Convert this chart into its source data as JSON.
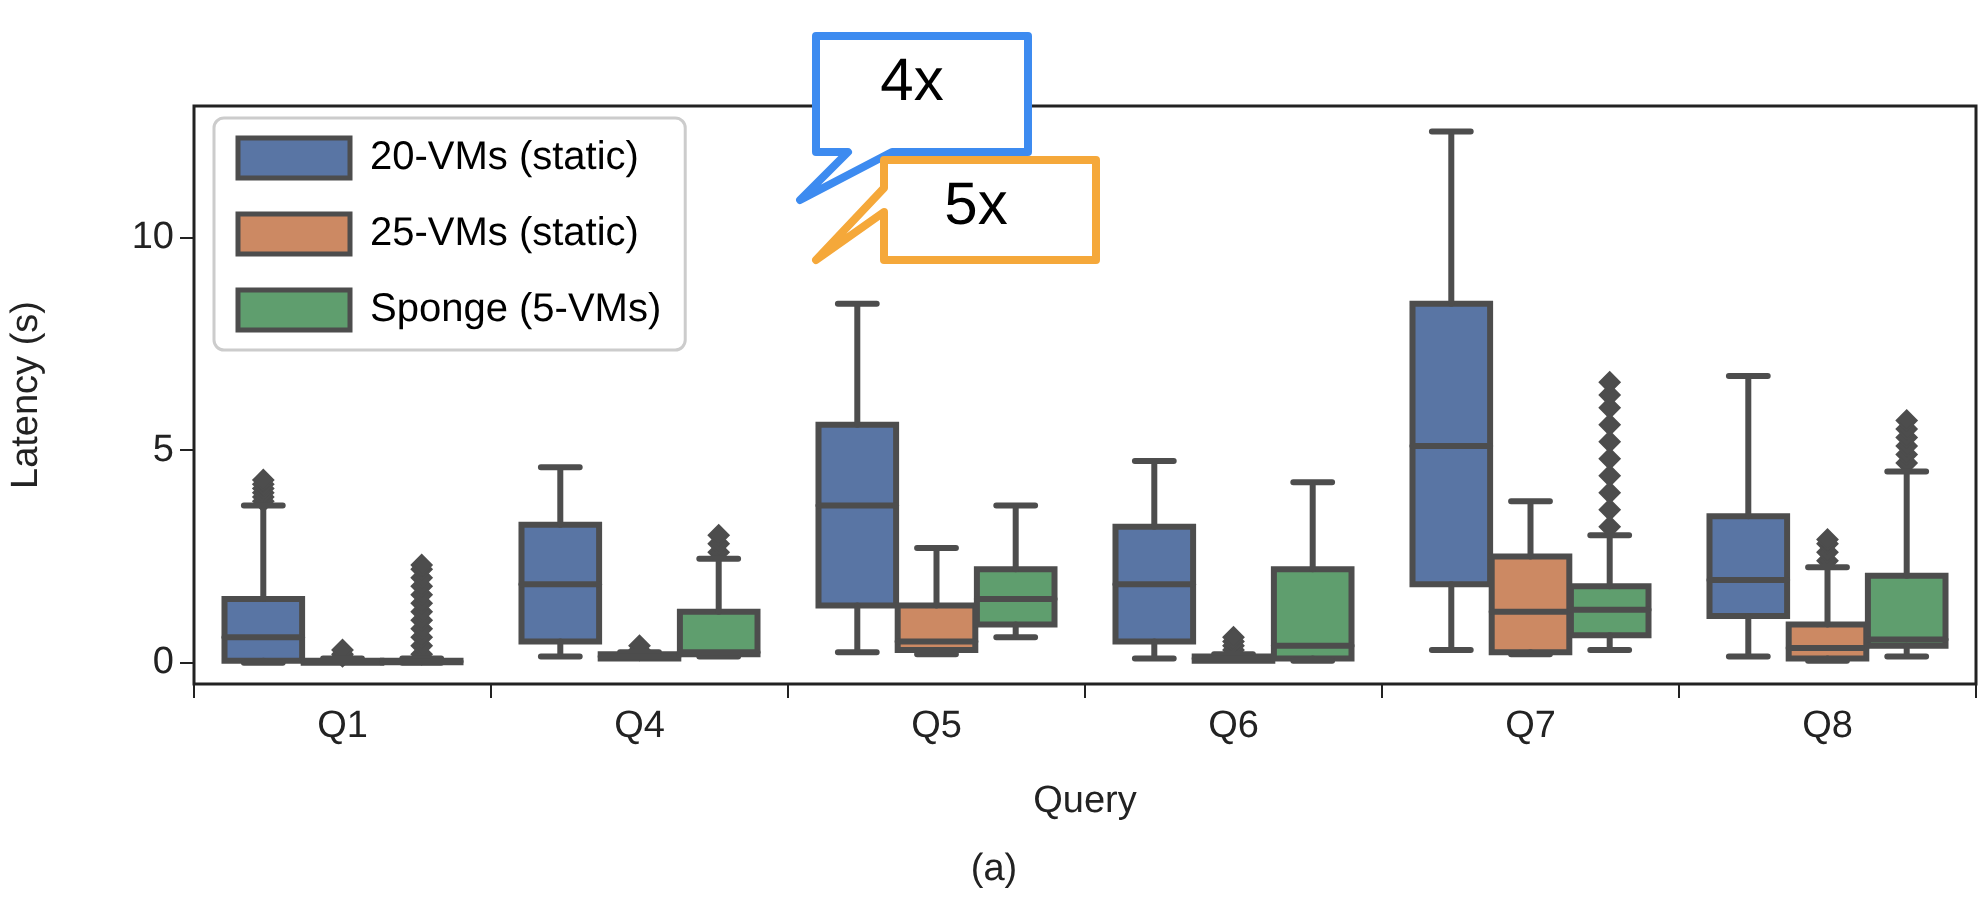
{
  "chart_data": {
    "type": "box",
    "xlabel": "Query",
    "ylabel": "Latency (s)",
    "categories": [
      "Q1",
      "Q4",
      "Q5",
      "Q6",
      "Q7",
      "Q8"
    ],
    "series": [
      {
        "name": "20-VMs (static)",
        "color": "#5975a4",
        "boxes": [
          {
            "low": 0,
            "q1": 0.05,
            "median": 0.6,
            "q3": 1.5,
            "high": 3.7,
            "outliers": [
              3.8,
              3.9,
              4.0,
              4.1,
              4.2,
              4.3
            ]
          },
          {
            "low": 0.15,
            "q1": 0.5,
            "median": 1.85,
            "q3": 3.25,
            "high": 4.6
          },
          {
            "low": 0.25,
            "q1": 1.35,
            "median": 3.7,
            "q3": 5.6,
            "high": 8.45
          },
          {
            "low": 0.1,
            "q1": 0.5,
            "median": 1.85,
            "q3": 3.2,
            "high": 4.75
          },
          {
            "low": 0.3,
            "q1": 1.85,
            "median": 5.1,
            "q3": 8.45,
            "high": 12.5
          },
          {
            "low": 0.15,
            "q1": 1.1,
            "median": 1.95,
            "q3": 3.45,
            "high": 6.75
          }
        ]
      },
      {
        "name": "25-VMs (static)",
        "color": "#cc8963",
        "boxes": [
          {
            "low": 0,
            "q1": 0,
            "median": 0.02,
            "q3": 0.05,
            "high": 0.1,
            "outliers": [
              0.15,
              0.2,
              0.3
            ]
          },
          {
            "low": 0.1,
            "q1": 0.1,
            "median": 0.15,
            "q3": 0.2,
            "high": 0.25,
            "outliers": [
              0.3,
              0.4
            ]
          },
          {
            "low": 0.2,
            "q1": 0.3,
            "median": 0.5,
            "q3": 1.35,
            "high": 2.7
          },
          {
            "low": 0.05,
            "q1": 0.05,
            "median": 0.1,
            "q3": 0.15,
            "high": 0.2,
            "outliers": [
              0.3,
              0.4,
              0.5,
              0.6
            ]
          },
          {
            "low": 0.2,
            "q1": 0.25,
            "median": 1.2,
            "q3": 2.5,
            "high": 3.8
          },
          {
            "low": 0.05,
            "q1": 0.1,
            "median": 0.35,
            "q3": 0.9,
            "high": 2.25,
            "outliers": [
              2.4,
              2.6,
              2.8,
              2.9
            ]
          }
        ]
      },
      {
        "name": "Sponge (5-VMs)",
        "color": "#5f9e6e",
        "boxes": [
          {
            "low": 0,
            "q1": 0.01,
            "median": 0.03,
            "q3": 0.05,
            "high": 0.1,
            "outliers": [
              0.2,
              0.4,
              0.6,
              0.8,
              1.0,
              1.2,
              1.4,
              1.6,
              1.8,
              2.0,
              2.2,
              2.3
            ]
          },
          {
            "low": 0.15,
            "q1": 0.2,
            "median": 0.25,
            "q3": 1.2,
            "high": 2.45,
            "outliers": [
              2.6,
              2.8,
              3.0
            ]
          },
          {
            "low": 0.6,
            "q1": 0.9,
            "median": 1.5,
            "q3": 2.2,
            "high": 3.7
          },
          {
            "low": 0.05,
            "q1": 0.1,
            "median": 0.4,
            "q3": 2.2,
            "high": 4.25
          },
          {
            "low": 0.3,
            "q1": 0.65,
            "median": 1.25,
            "q3": 1.8,
            "high": 3.0,
            "outliers": [
              3.2,
              3.6,
              4.0,
              4.4,
              4.8,
              5.2,
              5.6,
              6.0,
              6.3,
              6.6
            ]
          },
          {
            "low": 0.15,
            "q1": 0.4,
            "median": 0.55,
            "q3": 2.05,
            "high": 4.5,
            "outliers": [
              4.7,
              4.9,
              5.1,
              5.3,
              5.5,
              5.7
            ]
          }
        ]
      }
    ],
    "ylim": [
      -0.5,
      13.1
    ],
    "yticks": [
      0,
      5,
      10
    ],
    "legend": "top left",
    "marker": "diamond",
    "annotations": [
      "4x",
      "5x",
      "(a)"
    ]
  }
}
